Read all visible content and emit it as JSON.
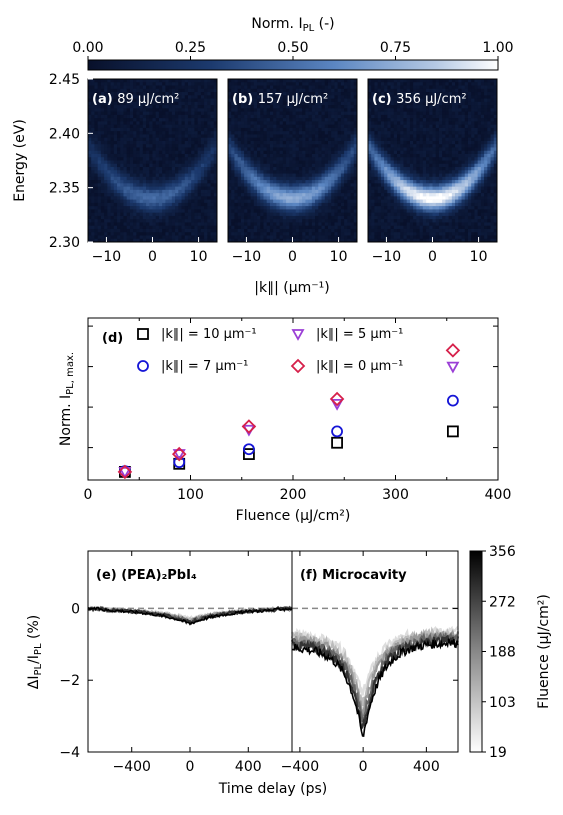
{
  "colorbar_top": {
    "label": "Norm. I",
    "label_sub": "PL",
    "label_suffix": " (-)",
    "ticks": [
      "0.00",
      "0.25",
      "0.50",
      "0.75",
      "1.00"
    ]
  },
  "colors": {
    "k10": "#000000",
    "k7": "#1515d6",
    "k5": "#9b3fd6",
    "k0": "#d6204a",
    "dashed": "#888888"
  },
  "chart_data": [
    {
      "type": "heatmap",
      "panel": "a",
      "panel_label": "(a)",
      "fluence_label": "89 μJ/cm²",
      "ylabel": "Energy (eV)",
      "xlabel": "|k∥| (μm⁻¹)",
      "yticks": [
        "2.30",
        "2.35",
        "2.40",
        "2.45"
      ],
      "xticks": [
        "−10",
        "0",
        "10"
      ],
      "xlim": [
        -14,
        14
      ],
      "ylim": [
        2.3,
        2.45
      ],
      "curve": {
        "center_energy": 2.34,
        "curvature": 0.00025,
        "peak": 0.45
      }
    },
    {
      "type": "heatmap",
      "panel": "b",
      "panel_label": "(b)",
      "fluence_label": "157 μJ/cm²",
      "xticks": [
        "−10",
        "0",
        "10"
      ],
      "xlim": [
        -14,
        14
      ],
      "ylim": [
        2.3,
        2.45
      ],
      "curve": {
        "center_energy": 2.34,
        "curvature": 0.00025,
        "peak": 0.7
      }
    },
    {
      "type": "heatmap",
      "panel": "c",
      "panel_label": "(c)",
      "fluence_label": "356 μJ/cm²",
      "xticks": [
        "−10",
        "0",
        "10"
      ],
      "xlim": [
        -14,
        14
      ],
      "ylim": [
        2.3,
        2.45
      ],
      "curve": {
        "center_energy": 2.34,
        "curvature": 0.00025,
        "peak": 1.0
      }
    },
    {
      "type": "scatter",
      "panel": "d",
      "panel_label": "(d)",
      "xlabel": "Fluence (μJ/cm²)",
      "ylabel": "Norm. I",
      "ylabel_sub": "PL, max.",
      "xticks": [
        "0",
        "100",
        "200",
        "300",
        "400"
      ],
      "xlim": [
        0,
        400
      ],
      "ylim": [
        0,
        1
      ],
      "series": [
        {
          "name": "|k∥| = 10 μm⁻¹",
          "marker": "square",
          "color_key": "k10",
          "x": [
            36,
            89,
            157,
            243,
            356
          ],
          "y": [
            0.05,
            0.1,
            0.16,
            0.23,
            0.3
          ]
        },
        {
          "name": "|k∥| = 7 μm⁻¹",
          "marker": "circle",
          "color_key": "k7",
          "x": [
            36,
            89,
            157,
            243,
            356
          ],
          "y": [
            0.055,
            0.11,
            0.19,
            0.3,
            0.49
          ]
        },
        {
          "name": "|k∥| = 5 μm⁻¹",
          "marker": "triangle",
          "color_key": "k5",
          "x": [
            36,
            89,
            157,
            243,
            356
          ],
          "y": [
            0.05,
            0.16,
            0.31,
            0.47,
            0.7
          ]
        },
        {
          "name": "|k∥| = 0 μm⁻¹",
          "marker": "diamond",
          "color_key": "k0",
          "x": [
            36,
            89,
            157,
            243,
            356
          ],
          "y": [
            0.05,
            0.16,
            0.33,
            0.5,
            0.8
          ]
        }
      ]
    },
    {
      "type": "line",
      "panel": "e",
      "panel_label": "(e) (PEA)₂PbI₄",
      "xlabel": "Time delay (ps)",
      "ylabel": "ΔI/I",
      "xticks": [
        "−400",
        "0",
        "400"
      ],
      "yticks": [
        "0",
        "−2",
        "−4"
      ],
      "xlim": [
        -700,
        700
      ],
      "ylim": [
        -4,
        1.6
      ],
      "dip_depth": -0.4
    },
    {
      "type": "line",
      "panel": "f",
      "panel_label": "(f) Microcavity",
      "xticks": [
        "−400",
        "0",
        "400"
      ],
      "xlim": [
        -450,
        600
      ],
      "ylim": [
        -4,
        1.6
      ],
      "dip_depth": -3.4
    }
  ],
  "colorbar_side": {
    "label": "Fluence (μJ/cm²)",
    "ticks": [
      "356",
      "272",
      "188",
      "103",
      "19"
    ]
  }
}
